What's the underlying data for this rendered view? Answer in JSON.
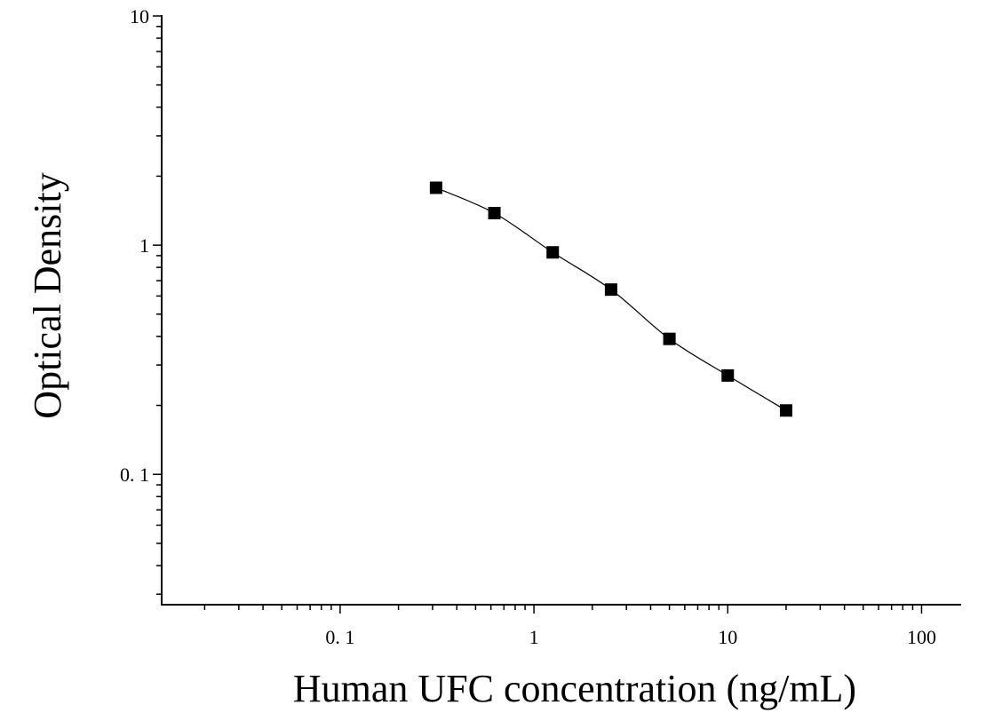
{
  "chart_data": {
    "type": "scatter",
    "title": "",
    "xlabel": "Human UFC concentration (ng/mL)",
    "ylabel": "Optical Density",
    "xscale": "log",
    "yscale": "log",
    "xlim": [
      0.012,
      160
    ],
    "ylim": [
      0.027,
      10
    ],
    "x_ticks": [
      {
        "value": 0.1,
        "label": "0. 1"
      },
      {
        "value": 1,
        "label": "1"
      },
      {
        "value": 10,
        "label": "10"
      },
      {
        "value": 100,
        "label": "100"
      }
    ],
    "y_ticks": [
      {
        "value": 0.1,
        "label": "0. 1"
      },
      {
        "value": 1,
        "label": "1"
      },
      {
        "value": 10,
        "label": "10"
      }
    ],
    "grid": false,
    "legend": "none",
    "series": [
      {
        "x": [
          0.3125,
          0.625,
          1.25,
          2.5,
          5,
          10,
          20
        ],
        "y": [
          1.78,
          1.38,
          0.93,
          0.64,
          0.39,
          0.27,
          0.19
        ],
        "marker": "square",
        "fit": "smooth-curve"
      }
    ],
    "colors": {
      "marker": "#000000",
      "line": "#000000",
      "axis": "#000000"
    }
  }
}
